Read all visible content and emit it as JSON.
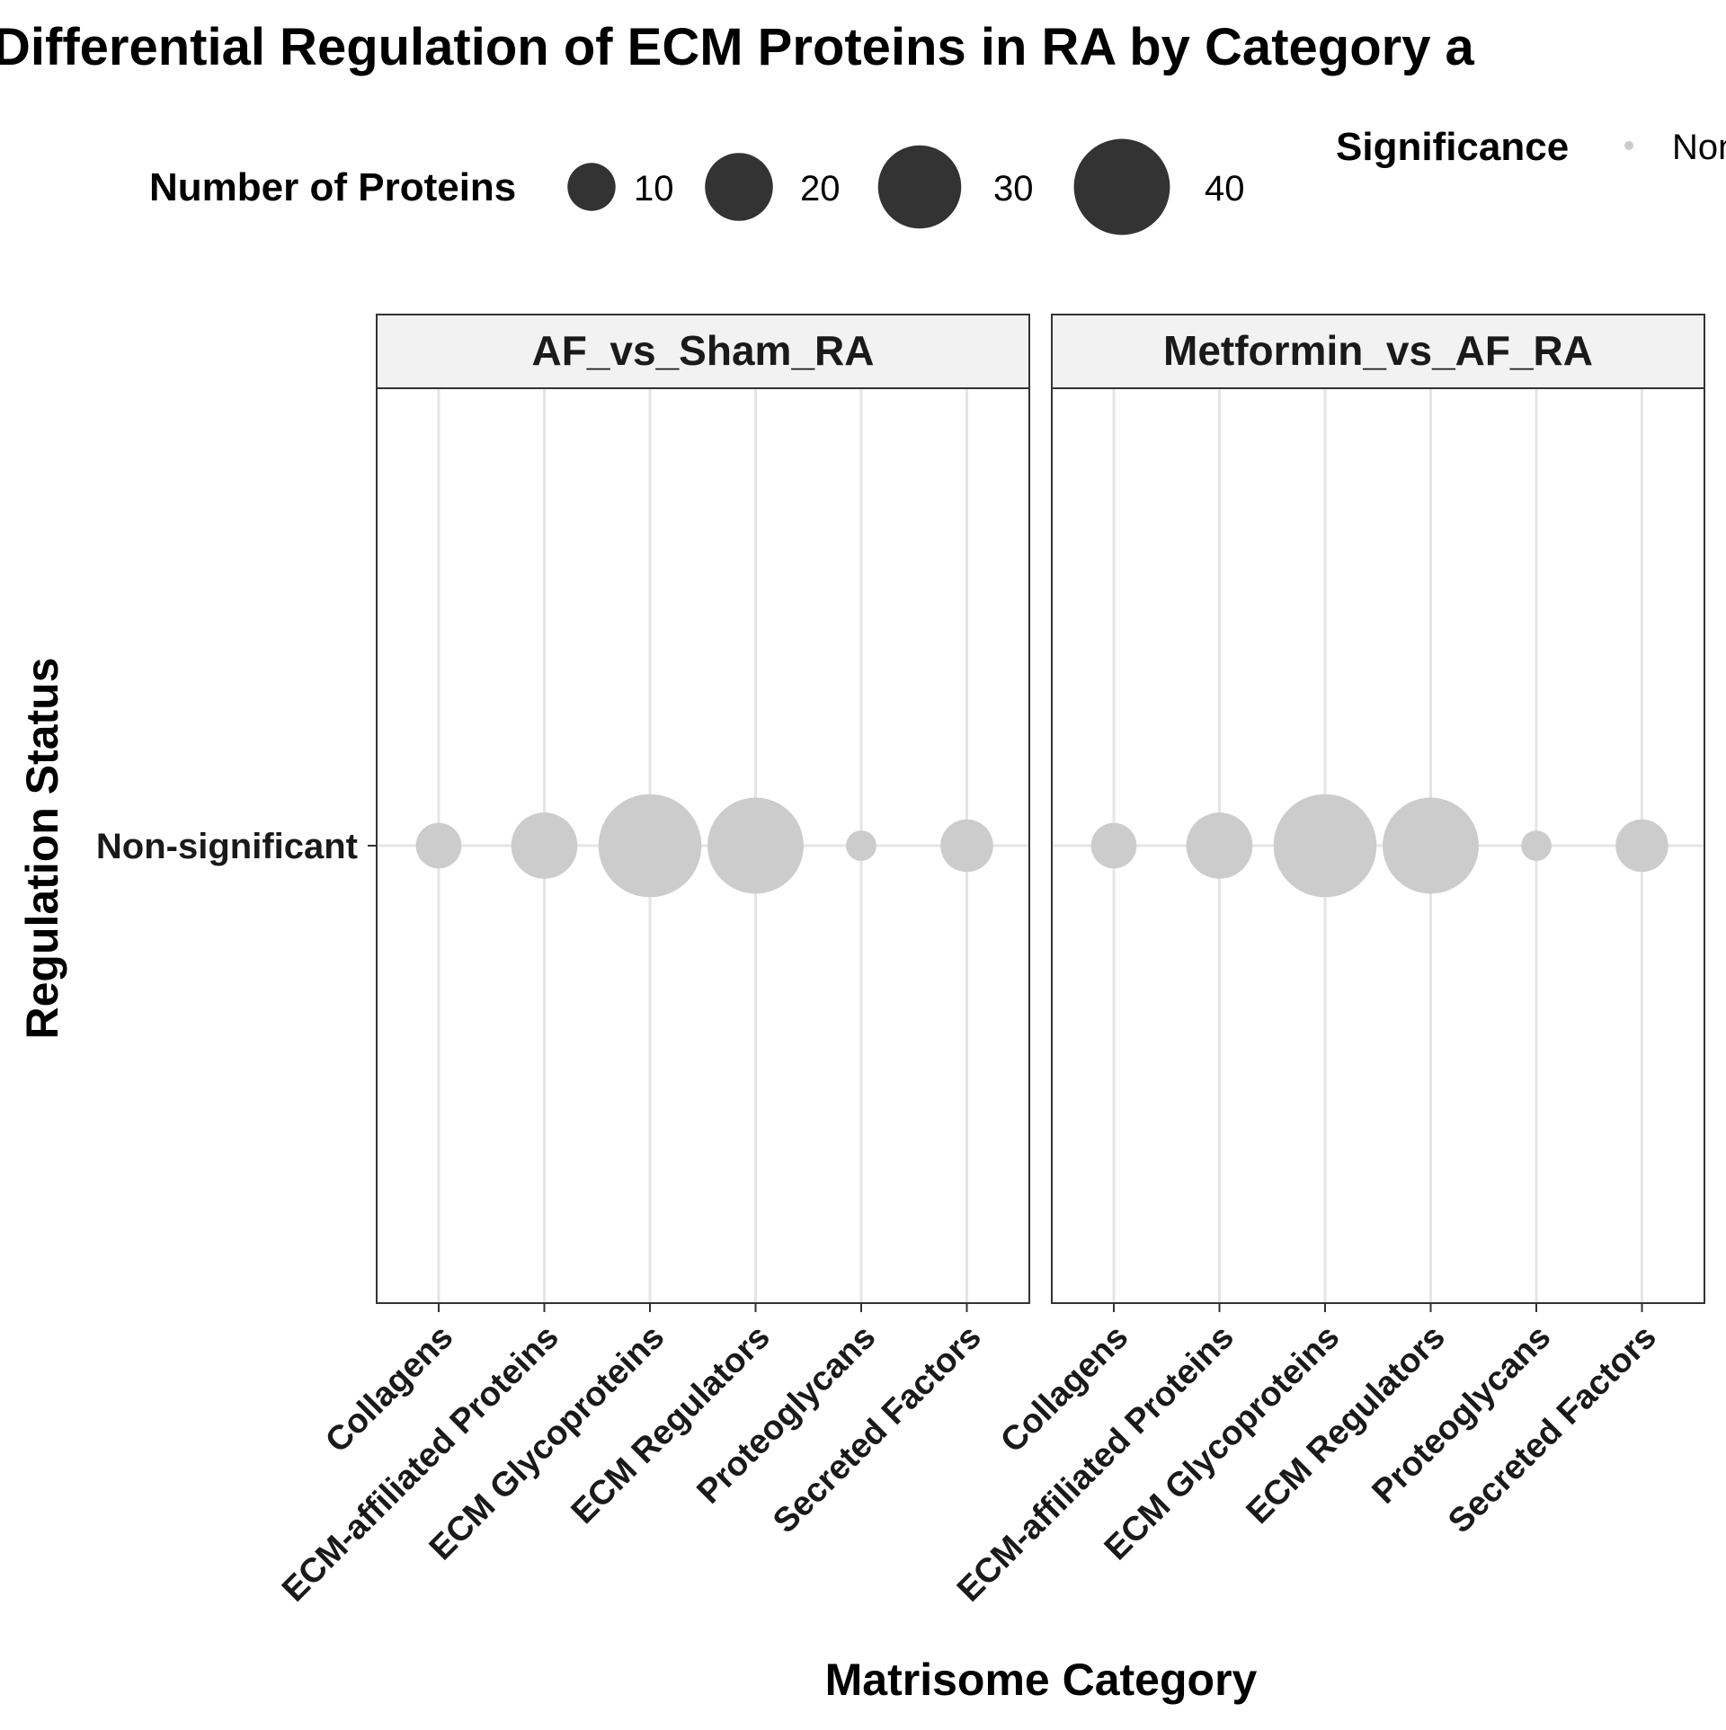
{
  "chart_data": {
    "type": "scatter",
    "title": "Differential Regulation of ECM Proteins in RA by Category a",
    "xlabel": "Matrisome Category",
    "ylabel": "Regulation Status",
    "categories": [
      "Collagens",
      "ECM-affiliated Proteins",
      "ECM Glycoproteins",
      "ECM Regulators",
      "Proteoglycans",
      "Secreted Factors"
    ],
    "y_categories": [
      "Non-significant"
    ],
    "facets": [
      {
        "label": "AF_vs_Sham_RA",
        "points": [
          {
            "category": "Collagens",
            "status": "Non-significant",
            "count": 9
          },
          {
            "category": "ECM-affiliated Proteins",
            "status": "Non-significant",
            "count": 19
          },
          {
            "category": "ECM Glycoproteins",
            "status": "Non-significant",
            "count": 46
          },
          {
            "category": "ECM Regulators",
            "status": "Non-significant",
            "count": 40
          },
          {
            "category": "Proteoglycans",
            "status": "Non-significant",
            "count": 4
          },
          {
            "category": "Secreted Factors",
            "status": "Non-significant",
            "count": 12
          }
        ]
      },
      {
        "label": "Metformin_vs_AF_RA",
        "points": [
          {
            "category": "Collagens",
            "status": "Non-significant",
            "count": 9
          },
          {
            "category": "ECM-affiliated Proteins",
            "status": "Non-significant",
            "count": 19
          },
          {
            "category": "ECM Glycoproteins",
            "status": "Non-significant",
            "count": 46
          },
          {
            "category": "ECM Regulators",
            "status": "Non-significant",
            "count": 40
          },
          {
            "category": "Proteoglycans",
            "status": "Non-significant",
            "count": 4
          },
          {
            "category": "Secreted Factors",
            "status": "Non-significant",
            "count": 12
          }
        ]
      }
    ],
    "size_legend": {
      "title": "Number of Proteins",
      "breaks": [
        10,
        20,
        30,
        40
      ],
      "labels": [
        "10",
        "20",
        "30",
        "40"
      ]
    },
    "color_legend": {
      "title": "Significance",
      "entries": [
        {
          "label": "Non",
          "color": "#cccccc"
        }
      ]
    },
    "point_color": "#cccccc",
    "legend_point_color": "#333333",
    "grid": true,
    "legend_position": "top"
  }
}
